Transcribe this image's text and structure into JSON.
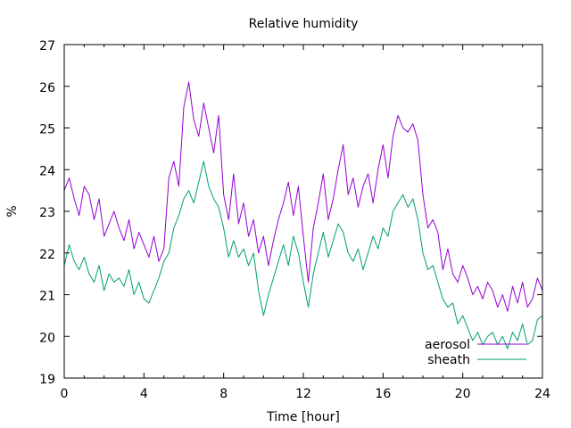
{
  "chart_data": {
    "type": "line",
    "title": "Relative humidity",
    "xlabel": "Time [hour]",
    "ylabel": "%",
    "xlim": [
      0,
      24
    ],
    "ylim": [
      19,
      27
    ],
    "xticks": [
      0,
      4,
      8,
      12,
      16,
      20,
      24
    ],
    "yticks": [
      19,
      20,
      21,
      22,
      23,
      24,
      25,
      26,
      27
    ],
    "legend_position": "bottom-right",
    "grid": false,
    "series": [
      {
        "name": "aerosol",
        "color": "#9400d3",
        "x": [
          0,
          0.25,
          0.5,
          0.75,
          1,
          1.25,
          1.5,
          1.75,
          2,
          2.25,
          2.5,
          2.75,
          3,
          3.25,
          3.5,
          3.75,
          4,
          4.25,
          4.5,
          4.75,
          5,
          5.25,
          5.5,
          5.75,
          6,
          6.25,
          6.5,
          6.75,
          7,
          7.25,
          7.5,
          7.75,
          8,
          8.25,
          8.5,
          8.75,
          9,
          9.25,
          9.5,
          9.75,
          10,
          10.25,
          10.5,
          10.75,
          11,
          11.25,
          11.5,
          11.75,
          12,
          12.25,
          12.5,
          12.75,
          13,
          13.25,
          13.5,
          13.75,
          14,
          14.25,
          14.5,
          14.75,
          15,
          15.25,
          15.5,
          15.75,
          16,
          16.25,
          16.5,
          16.75,
          17,
          17.25,
          17.5,
          17.75,
          18,
          18.25,
          18.5,
          18.75,
          19,
          19.25,
          19.5,
          19.75,
          20,
          20.25,
          20.5,
          20.75,
          21,
          21.25,
          21.5,
          21.75,
          22,
          22.25,
          22.5,
          22.75,
          23,
          23.25,
          23.5,
          23.75,
          24
        ],
        "values": [
          23.5,
          23.8,
          23.3,
          22.9,
          23.6,
          23.4,
          22.8,
          23.3,
          22.4,
          22.7,
          23.0,
          22.6,
          22.3,
          22.8,
          22.1,
          22.5,
          22.2,
          21.9,
          22.4,
          21.8,
          22.1,
          23.8,
          24.2,
          23.6,
          25.5,
          26.1,
          25.2,
          24.8,
          25.6,
          25.0,
          24.4,
          25.3,
          23.4,
          22.8,
          23.9,
          22.7,
          23.2,
          22.4,
          22.8,
          22.0,
          22.4,
          21.7,
          22.3,
          22.8,
          23.2,
          23.7,
          22.9,
          23.6,
          22.4,
          21.3,
          22.6,
          23.2,
          23.9,
          22.8,
          23.3,
          24.0,
          24.6,
          23.4,
          23.8,
          23.1,
          23.6,
          23.9,
          23.2,
          24.0,
          24.6,
          23.8,
          24.8,
          25.3,
          25.0,
          24.9,
          25.1,
          24.7,
          23.4,
          22.6,
          22.8,
          22.5,
          21.6,
          22.1,
          21.5,
          21.3,
          21.7,
          21.4,
          21.0,
          21.2,
          20.9,
          21.3,
          21.1,
          20.7,
          21.0,
          20.6,
          21.2,
          20.8,
          21.3,
          20.7,
          20.9,
          21.4,
          21.1
        ],
        "linewidth": 1
      },
      {
        "name": "sheath",
        "color": "#009e73",
        "x": [
          0,
          0.25,
          0.5,
          0.75,
          1,
          1.25,
          1.5,
          1.75,
          2,
          2.25,
          2.5,
          2.75,
          3,
          3.25,
          3.5,
          3.75,
          4,
          4.25,
          4.5,
          4.75,
          5,
          5.25,
          5.5,
          5.75,
          6,
          6.25,
          6.5,
          6.75,
          7,
          7.25,
          7.5,
          7.75,
          8,
          8.25,
          8.5,
          8.75,
          9,
          9.25,
          9.5,
          9.75,
          10,
          10.25,
          10.5,
          10.75,
          11,
          11.25,
          11.5,
          11.75,
          12,
          12.25,
          12.5,
          12.75,
          13,
          13.25,
          13.5,
          13.75,
          14,
          14.25,
          14.5,
          14.75,
          15,
          15.25,
          15.5,
          15.75,
          16,
          16.25,
          16.5,
          16.75,
          17,
          17.25,
          17.5,
          17.75,
          18,
          18.25,
          18.5,
          18.75,
          19,
          19.25,
          19.5,
          19.75,
          20,
          20.25,
          20.5,
          20.75,
          21,
          21.25,
          21.5,
          21.75,
          22,
          22.25,
          22.5,
          22.75,
          23,
          23.25,
          23.5,
          23.75,
          24
        ],
        "values": [
          21.7,
          22.2,
          21.8,
          21.6,
          21.9,
          21.5,
          21.3,
          21.7,
          21.1,
          21.5,
          21.3,
          21.4,
          21.2,
          21.6,
          21.0,
          21.3,
          20.9,
          20.8,
          21.1,
          21.4,
          21.8,
          22.0,
          22.6,
          22.9,
          23.3,
          23.5,
          23.2,
          23.7,
          24.2,
          23.6,
          23.3,
          23.1,
          22.6,
          21.9,
          22.3,
          21.9,
          22.1,
          21.7,
          22.0,
          21.1,
          20.5,
          21.0,
          21.4,
          21.8,
          22.2,
          21.7,
          22.4,
          22.0,
          21.3,
          20.7,
          21.5,
          22.0,
          22.5,
          21.9,
          22.3,
          22.7,
          22.5,
          22.0,
          21.8,
          22.1,
          21.6,
          22.0,
          22.4,
          22.1,
          22.6,
          22.4,
          23.0,
          23.2,
          23.4,
          23.1,
          23.3,
          22.8,
          22.0,
          21.6,
          21.7,
          21.3,
          20.9,
          20.7,
          20.8,
          20.3,
          20.5,
          20.2,
          19.9,
          20.1,
          19.8,
          20.0,
          20.1,
          19.8,
          20.0,
          19.7,
          20.1,
          19.9,
          20.3,
          19.8,
          19.9,
          20.4,
          20.5
        ],
        "linewidth": 1
      }
    ]
  }
}
